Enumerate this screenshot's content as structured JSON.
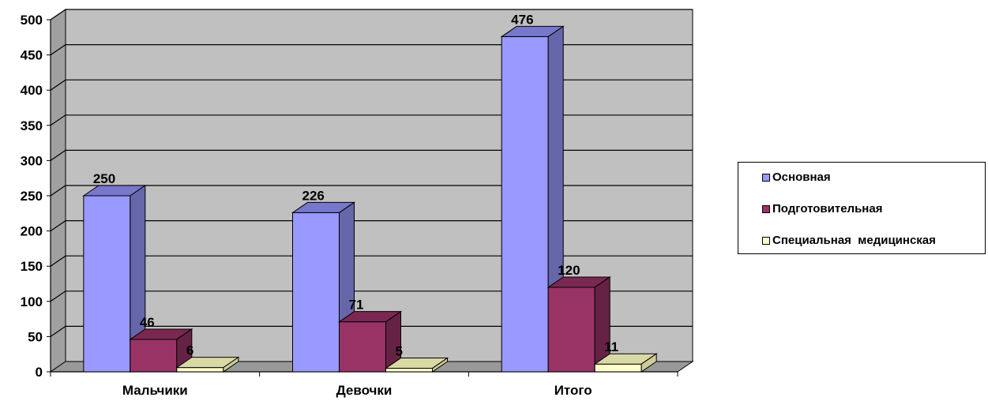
{
  "chart_data": {
    "type": "bar",
    "categories": [
      "Мальчики",
      "Девочки",
      "Итого"
    ],
    "series": [
      {
        "name": "Основная",
        "values": [
          250,
          226,
          476
        ],
        "color": "#9999FF",
        "side_color": "#6666AA",
        "top_color": "#7777CC"
      },
      {
        "name": "Подготовительная",
        "values": [
          46,
          71,
          120
        ],
        "color": "#993366",
        "side_color": "#662244",
        "top_color": "#7A2852"
      },
      {
        "name": "Специальная  медицинская",
        "values": [
          6,
          5,
          11
        ],
        "color": "#FFFFCC",
        "side_color": "#CCCC99",
        "top_color": "#D9D9A6"
      }
    ],
    "data_labels": [
      [
        "250",
        "226",
        "476"
      ],
      [
        "46",
        "71",
        "120"
      ],
      [
        "6",
        "5",
        "11"
      ]
    ],
    "yticks": [
      "0",
      "50",
      "100",
      "150",
      "200",
      "250",
      "300",
      "350",
      "400",
      "450",
      "500"
    ],
    "ylim": [
      0,
      500
    ],
    "grid": true,
    "legend_position": "right",
    "wall_color": "#C0C0C0",
    "floor_color": "#999999"
  }
}
